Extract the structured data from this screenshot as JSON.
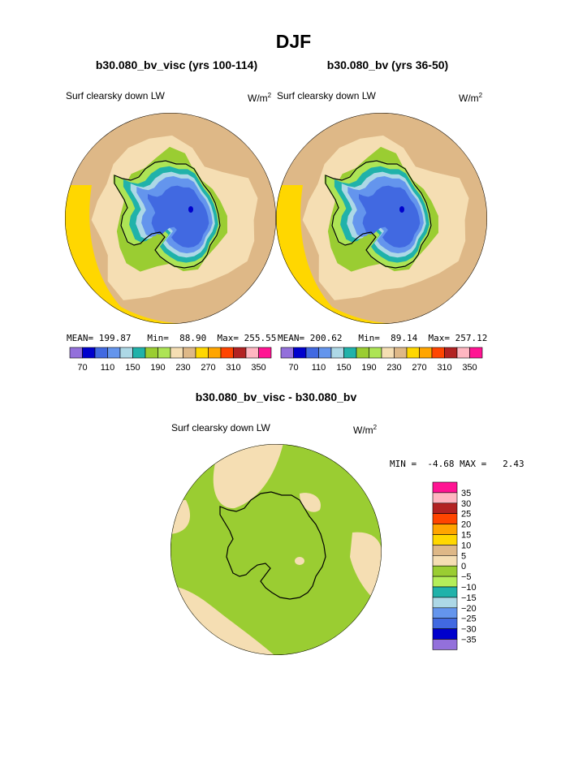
{
  "title": "DJF",
  "panels": [
    {
      "title": "b30.080_bv_visc (yrs 100-114)",
      "variable": "Surf clearsky down LW",
      "units": "W/m",
      "units_exp": "2",
      "stats": {
        "mean_label": "MEAN=",
        "mean": "199.87",
        "min_label": "Min=",
        "min": "88.90",
        "max_label": "Max=",
        "max": "255.55"
      }
    },
    {
      "title": "b30.080_bv (yrs 36-50)",
      "variable": "Surf clearsky down LW",
      "units": "W/m",
      "units_exp": "2",
      "stats": {
        "mean_label": "MEAN=",
        "mean": "200.62",
        "min_label": "Min=",
        "min": "89.14",
        "max_label": "Max=",
        "max": "257.12"
      }
    }
  ],
  "diff": {
    "title": "b30.080_bv_visc - b30.080_bv",
    "variable": "Surf clearsky down LW",
    "units": "W/m",
    "units_exp": "2",
    "min_label": "MIN =",
    "min": "-4.68",
    "max_label": "MAX =",
    "max": "2.43"
  },
  "colorbar_main": {
    "colors": [
      "#9370db",
      "#0000cd",
      "#4169e1",
      "#6495ed",
      "#add8e6",
      "#20b2aa",
      "#9acd32",
      "#ade455",
      "#f5deb3",
      "#deb887",
      "#ffd700",
      "#ffa500",
      "#ff4500",
      "#b22222",
      "#ffb6c1",
      "#ff1493"
    ],
    "labels": [
      "70",
      "110",
      "150",
      "190",
      "230",
      "270",
      "310",
      "350"
    ]
  },
  "colorbar_diff": {
    "colors": [
      "#9370db",
      "#0000cd",
      "#4169e1",
      "#6495ed",
      "#add8e6",
      "#20b2aa",
      "#b4ee5a",
      "#9acd32",
      "#f5deb3",
      "#deb887",
      "#ffd700",
      "#ffa500",
      "#ff4500",
      "#b22222",
      "#ffb6c1",
      "#ff1493"
    ],
    "labels": [
      "35",
      "30",
      "25",
      "20",
      "15",
      "10",
      "5",
      "0",
      "−5",
      "−10",
      "−15",
      "−20",
      "−25",
      "−30",
      "−35"
    ]
  },
  "palette": {
    "coast": "#000000",
    "outer_ring": "#deb887",
    "ocean": "#f5deb3",
    "yellow": "#ffd700",
    "land_green": "#9acd32",
    "light_green": "#ade455",
    "teal": "#20b2aa",
    "light_blue": "#add8e6",
    "mid_blue": "#6495ed",
    "blue": "#4169e1",
    "dark_blue": "#0000cd",
    "diff_land": "#9acd32",
    "diff_pos": "#f5deb3"
  }
}
